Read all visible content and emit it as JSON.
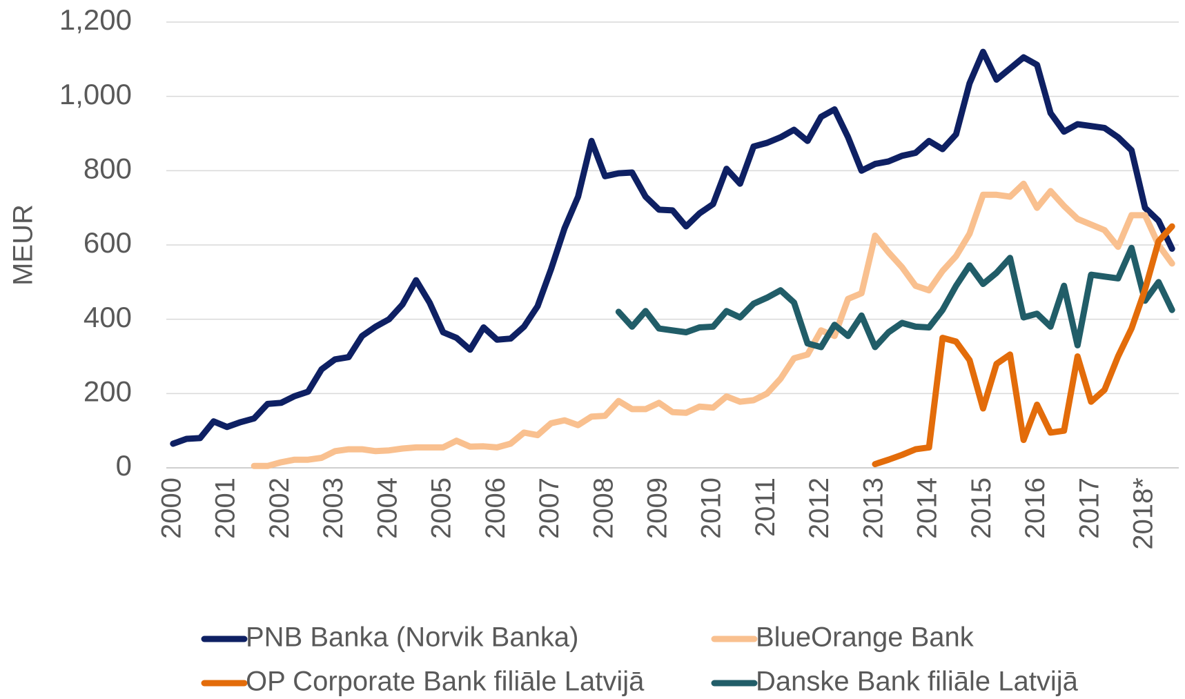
{
  "chart_data": {
    "type": "line",
    "ylabel": "MEUR",
    "categories": [
      "2000",
      null,
      null,
      null,
      "2001",
      null,
      null,
      null,
      "2002",
      null,
      null,
      null,
      "2003",
      null,
      null,
      null,
      "2004",
      null,
      null,
      null,
      "2005",
      null,
      null,
      null,
      "2006",
      null,
      null,
      null,
      "2007",
      null,
      null,
      null,
      "2008",
      null,
      null,
      null,
      "2009",
      null,
      null,
      null,
      "2010",
      null,
      null,
      null,
      "2011",
      null,
      null,
      null,
      "2012",
      null,
      null,
      null,
      "2013",
      null,
      null,
      null,
      "2014",
      null,
      null,
      null,
      "2015",
      null,
      null,
      null,
      "2016",
      null,
      null,
      null,
      "2017",
      null,
      null,
      null,
      "2018*",
      null,
      null
    ],
    "ylim": [
      0,
      1200
    ],
    "yticks": [
      0,
      200,
      400,
      600,
      800,
      {
        "value": 1000,
        "label": "1,000"
      },
      {
        "value": 1200,
        "label": "1,200"
      }
    ],
    "grid": true,
    "legend": "bottom",
    "series": [
      {
        "name": "PNB Banka (Norvik Banka)",
        "color": "#0e2063",
        "values": [
          65,
          78,
          80,
          125,
          110,
          123,
          133,
          172,
          175,
          193,
          205,
          265,
          292,
          298,
          355,
          380,
          400,
          440,
          505,
          445,
          365,
          350,
          318,
          378,
          345,
          348,
          380,
          435,
          535,
          645,
          730,
          880,
          785,
          793,
          795,
          730,
          695,
          693,
          650,
          685,
          710,
          805,
          765,
          865,
          875,
          890,
          910,
          880,
          945,
          965,
          890,
          800,
          818,
          825,
          840,
          848,
          880,
          858,
          898,
          1035,
          1120,
          1045,
          1075,
          1105,
          1085,
          955,
          905,
          925,
          920,
          915,
          890,
          855,
          700,
          665,
          590
        ]
      },
      {
        "name": "BlueOrange Bank",
        "color": "#f9c08f",
        "values": [
          null,
          null,
          null,
          null,
          null,
          null,
          5,
          5,
          15,
          22,
          22,
          27,
          45,
          50,
          50,
          45,
          47,
          52,
          55,
          55,
          55,
          73,
          57,
          58,
          55,
          65,
          95,
          88,
          120,
          128,
          115,
          138,
          140,
          180,
          158,
          158,
          175,
          150,
          148,
          165,
          162,
          192,
          178,
          182,
          200,
          240,
          295,
          305,
          370,
          355,
          455,
          470,
          625,
          580,
          540,
          490,
          478,
          530,
          570,
          630,
          735,
          735,
          730,
          765,
          700,
          745,
          705,
          670,
          655,
          640,
          595,
          680,
          680,
          600,
          550
        ]
      },
      {
        "name": "OP Corporate Bank filiāle Latvijā",
        "color": "#e36c0a",
        "values": [
          null,
          null,
          null,
          null,
          null,
          null,
          null,
          null,
          null,
          null,
          null,
          null,
          null,
          null,
          null,
          null,
          null,
          null,
          null,
          null,
          null,
          null,
          null,
          null,
          null,
          null,
          null,
          null,
          null,
          null,
          null,
          null,
          null,
          null,
          null,
          null,
          null,
          null,
          null,
          null,
          null,
          null,
          null,
          null,
          null,
          null,
          null,
          null,
          null,
          null,
          null,
          null,
          10,
          22,
          35,
          50,
          55,
          350,
          340,
          290,
          160,
          280,
          305,
          75,
          170,
          95,
          100,
          300,
          178,
          210,
          300,
          375,
          480,
          610,
          650
        ]
      },
      {
        "name": "Danske Bank filiāle Latvijā",
        "color": "#215d68",
        "values": [
          null,
          null,
          null,
          null,
          null,
          null,
          null,
          null,
          null,
          null,
          null,
          null,
          null,
          null,
          null,
          null,
          null,
          null,
          null,
          null,
          null,
          null,
          null,
          null,
          null,
          null,
          null,
          null,
          null,
          null,
          null,
          null,
          null,
          420,
          380,
          422,
          375,
          370,
          365,
          378,
          380,
          422,
          405,
          442,
          458,
          478,
          445,
          335,
          325,
          385,
          355,
          410,
          325,
          365,
          390,
          380,
          378,
          425,
          490,
          545,
          495,
          525,
          565,
          405,
          415,
          380,
          490,
          330,
          520,
          515,
          510,
          592,
          450,
          500,
          425
        ]
      }
    ]
  }
}
